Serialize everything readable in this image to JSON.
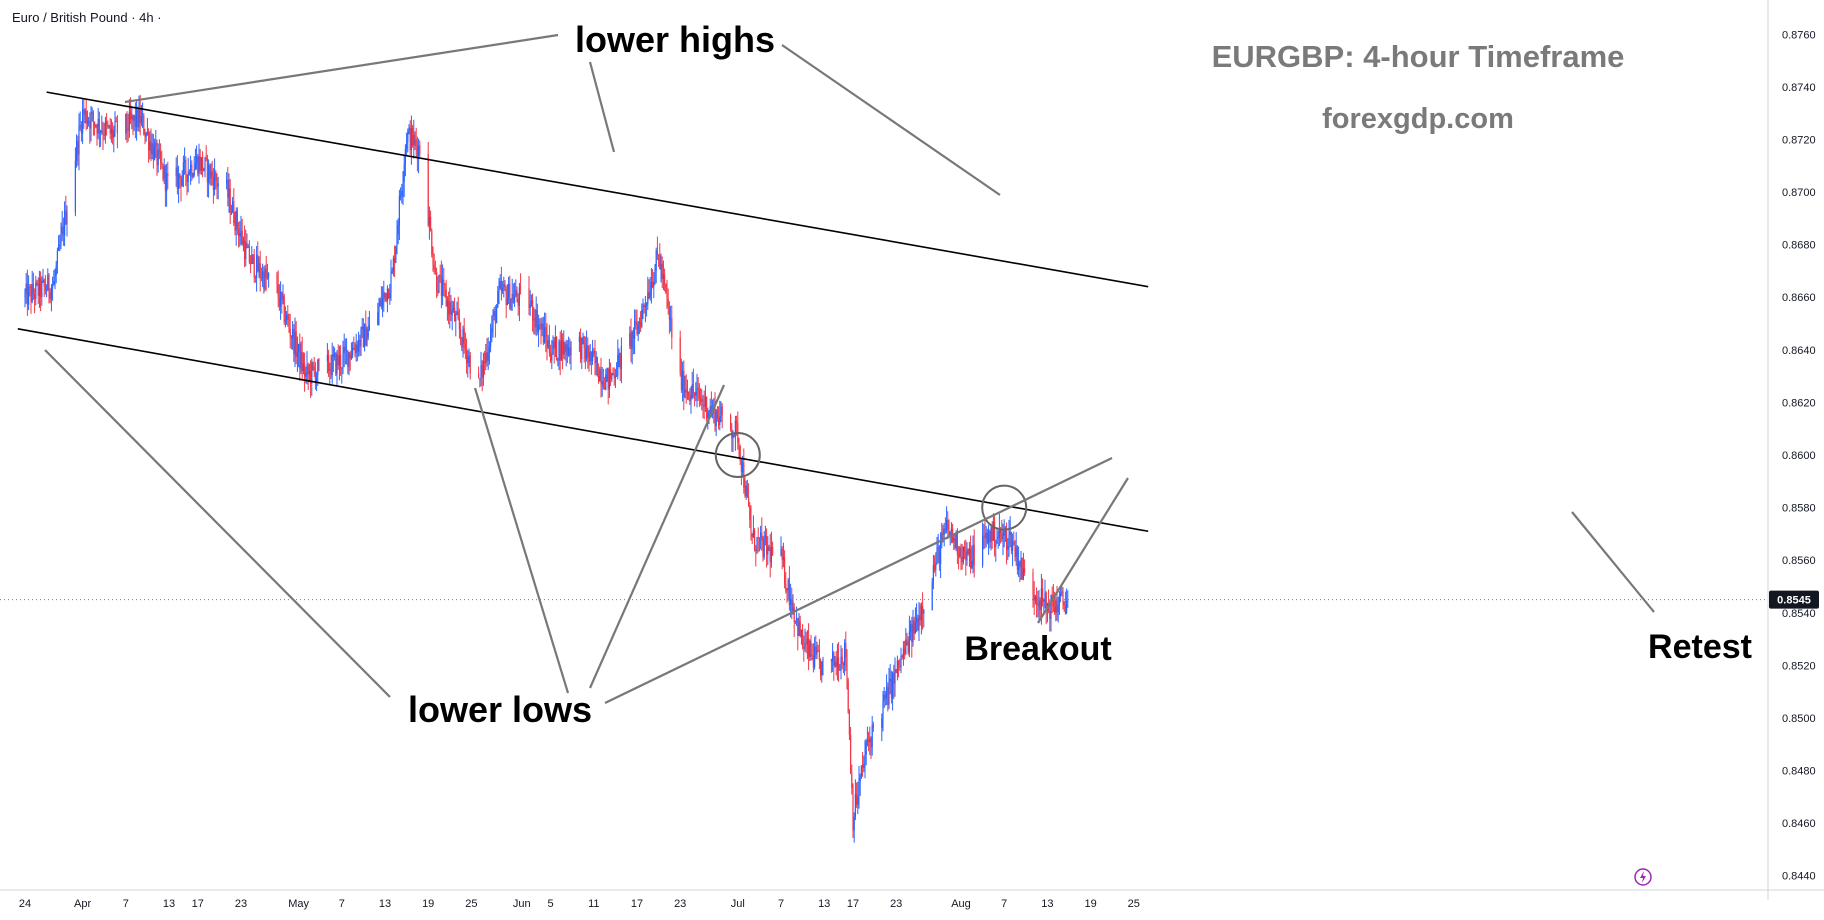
{
  "header": {
    "symbol_line": "Euro / British Pound · 4h ·"
  },
  "title": "EURGBP: 4-hour Timeframe",
  "subtitle": "forexgdp.com",
  "chart_data": {
    "type": "candlestick",
    "symbol": "Euro / British Pound",
    "timeframe": "4h",
    "ylim": [
      0.843,
      0.877
    ],
    "y_ticks": [
      "0.8760",
      "0.8740",
      "0.8720",
      "0.8700",
      "0.8680",
      "0.8660",
      "0.8640",
      "0.8620",
      "0.8600",
      "0.8580",
      "0.8560",
      "0.8540",
      "0.8520",
      "0.8500",
      "0.8480",
      "0.8460",
      "0.8440"
    ],
    "x_ticks": [
      "24",
      "Apr",
      "7",
      "13",
      "17",
      "23",
      "May",
      "7",
      "13",
      "19",
      "25",
      "Jun",
      "5",
      "11",
      "17",
      "23",
      "Jul",
      "7",
      "13",
      "17",
      "23",
      "Aug",
      "7",
      "13",
      "19",
      "25"
    ],
    "current_price": "0.8545",
    "close_path": [
      {
        "date": "2024-03-24",
        "close": 0.866
      },
      {
        "date": "2024-03-28",
        "close": 0.8665
      },
      {
        "date": "2024-04-01",
        "close": 0.873
      },
      {
        "date": "2024-04-05",
        "close": 0.8722
      },
      {
        "date": "2024-04-09",
        "close": 0.8728
      },
      {
        "date": "2024-04-13",
        "close": 0.8702
      },
      {
        "date": "2024-04-17",
        "close": 0.8712
      },
      {
        "date": "2024-04-21",
        "close": 0.87
      },
      {
        "date": "2024-04-24",
        "close": 0.8675
      },
      {
        "date": "2024-04-28",
        "close": 0.8662
      },
      {
        "date": "2024-05-02",
        "close": 0.863
      },
      {
        "date": "2024-05-07",
        "close": 0.8636
      },
      {
        "date": "2024-05-11",
        "close": 0.8648
      },
      {
        "date": "2024-05-14",
        "close": 0.8668
      },
      {
        "date": "2024-05-16",
        "close": 0.8722
      },
      {
        "date": "2024-05-18",
        "close": 0.8716
      },
      {
        "date": "2024-05-20",
        "close": 0.8668
      },
      {
        "date": "2024-05-23",
        "close": 0.865
      },
      {
        "date": "2024-05-26",
        "close": 0.8626
      },
      {
        "date": "2024-05-29",
        "close": 0.8662
      },
      {
        "date": "2024-06-02",
        "close": 0.8658
      },
      {
        "date": "2024-06-05",
        "close": 0.864
      },
      {
        "date": "2024-06-09",
        "close": 0.8642
      },
      {
        "date": "2024-06-13",
        "close": 0.8628
      },
      {
        "date": "2024-06-17",
        "close": 0.8648
      },
      {
        "date": "2024-06-20",
        "close": 0.8676
      },
      {
        "date": "2024-06-23",
        "close": 0.8628
      },
      {
        "date": "2024-06-27",
        "close": 0.8618
      },
      {
        "date": "2024-07-01",
        "close": 0.8608
      },
      {
        "date": "2024-07-03",
        "close": 0.8568
      },
      {
        "date": "2024-07-07",
        "close": 0.856
      },
      {
        "date": "2024-07-10",
        "close": 0.8528
      },
      {
        "date": "2024-07-13",
        "close": 0.8518
      },
      {
        "date": "2024-07-16",
        "close": 0.8525
      },
      {
        "date": "2024-07-17",
        "close": 0.8462
      },
      {
        "date": "2024-07-19",
        "close": 0.849
      },
      {
        "date": "2024-07-22",
        "close": 0.851
      },
      {
        "date": "2024-07-26",
        "close": 0.8538
      },
      {
        "date": "2024-07-30",
        "close": 0.8572
      },
      {
        "date": "2024-08-02",
        "close": 0.856
      },
      {
        "date": "2024-08-05",
        "close": 0.857
      },
      {
        "date": "2024-08-08",
        "close": 0.8568
      },
      {
        "date": "2024-08-10",
        "close": 0.8552
      },
      {
        "date": "2024-08-13",
        "close": 0.8542
      },
      {
        "date": "2024-08-16",
        "close": 0.8545
      }
    ],
    "trendlines": [
      {
        "name": "upper channel line",
        "from": {
          "date": "2024-03-27",
          "price": 0.8738
        },
        "to": {
          "date": "2024-08-27",
          "price": 0.8664
        }
      },
      {
        "name": "lower channel line",
        "from": {
          "date": "2024-03-23",
          "price": 0.8648
        },
        "to": {
          "date": "2024-08-27",
          "price": 0.8571
        }
      }
    ],
    "highlights": [
      {
        "name": "breakout-circle",
        "date": "2024-07-01",
        "price": 0.86
      },
      {
        "name": "retest-circle",
        "date": "2024-08-07",
        "price": 0.858
      }
    ],
    "annotations": [
      {
        "text": "lower highs",
        "target": "swing highs"
      },
      {
        "text": "lower lows",
        "target": "swing lows"
      },
      {
        "text": "Breakout",
        "target": "breakout-circle"
      },
      {
        "text": "Retest",
        "target": "retest-circle"
      }
    ]
  }
}
